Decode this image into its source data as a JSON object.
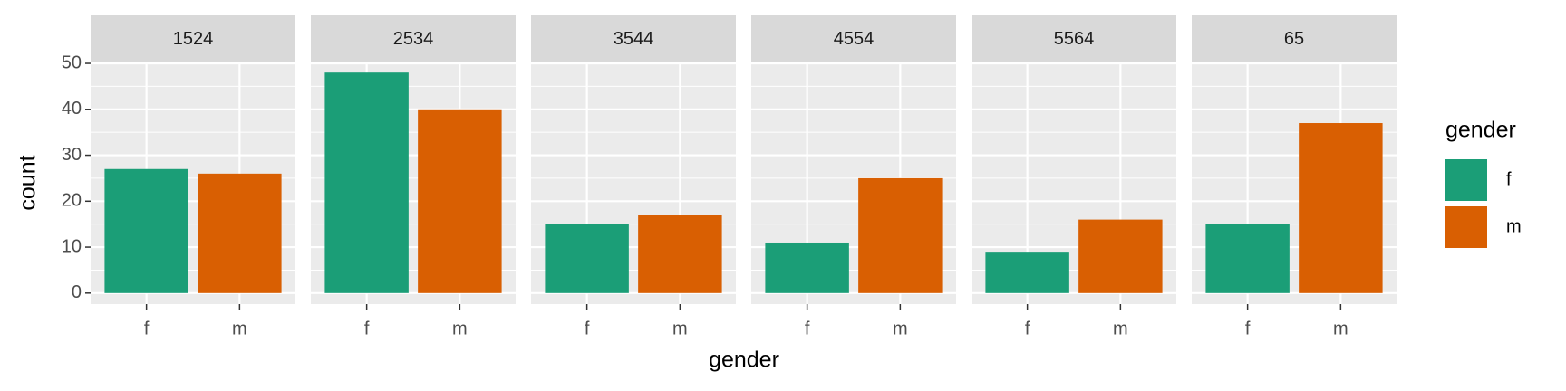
{
  "chart_data": {
    "type": "bar",
    "x_label": "gender",
    "y_label": "count",
    "legend_title": "gender",
    "categories": [
      "f",
      "m"
    ],
    "colors": [
      "#1b9e77",
      "#d95f02"
    ],
    "panels": [
      {
        "title": "1524",
        "values": [
          27,
          26
        ]
      },
      {
        "title": "2534",
        "values": [
          48,
          40
        ]
      },
      {
        "title": "3544",
        "values": [
          15,
          17
        ]
      },
      {
        "title": "4554",
        "values": [
          11,
          25
        ]
      },
      {
        "title": "5564",
        "values": [
          9,
          16
        ]
      },
      {
        "title": "65",
        "values": [
          15,
          37
        ]
      }
    ],
    "ylim": [
      -2.4,
      50.4
    ],
    "yticks": [
      0,
      10,
      20,
      30,
      40,
      50
    ],
    "minor_yticks": [
      5,
      15,
      25,
      35,
      45
    ],
    "grid": true
  }
}
